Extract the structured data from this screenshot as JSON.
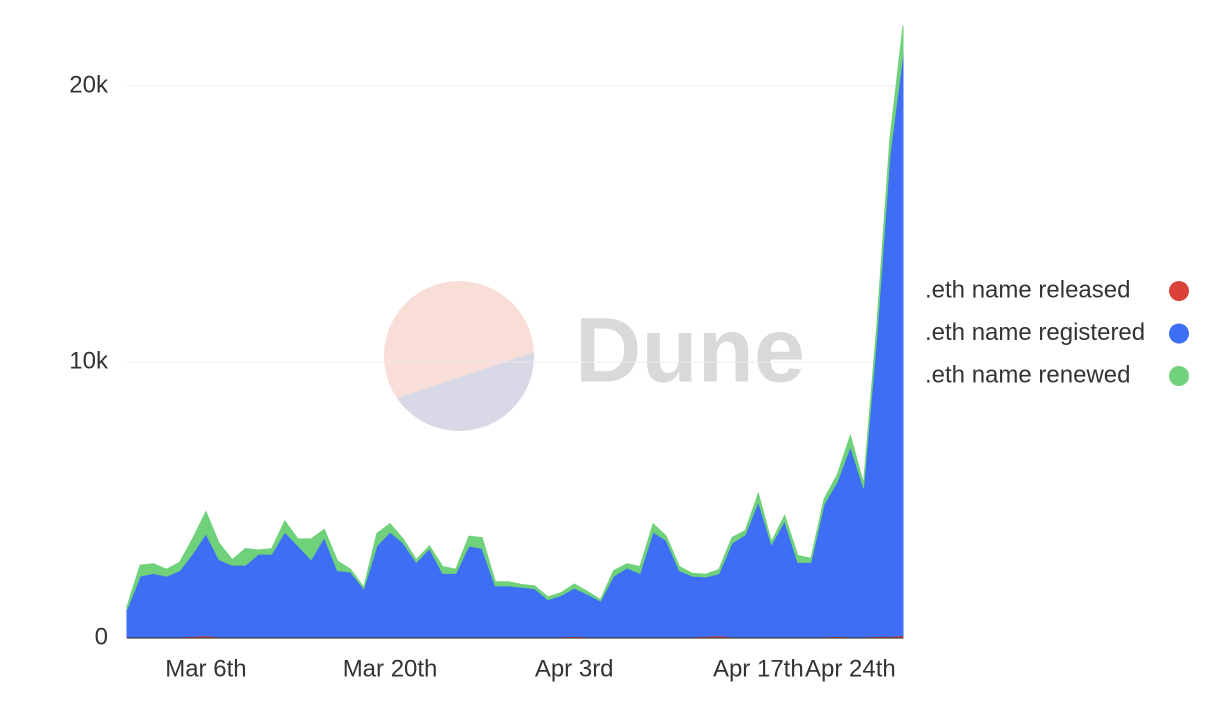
{
  "chart_data": {
    "type": "stacked_area",
    "watermark": "Dune",
    "categories": [
      null,
      null,
      null,
      null,
      null,
      null,
      "Mar 6th",
      null,
      null,
      null,
      null,
      null,
      null,
      null,
      null,
      null,
      null,
      null,
      null,
      null,
      "Mar 20th",
      null,
      null,
      null,
      null,
      null,
      null,
      null,
      null,
      null,
      null,
      null,
      null,
      null,
      "Apr 3rd",
      null,
      null,
      null,
      null,
      null,
      null,
      null,
      null,
      null,
      null,
      null,
      null,
      null,
      "Apr 17th",
      null,
      null,
      null,
      null,
      null,
      null,
      "Apr 24th",
      null,
      null,
      null,
      null
    ],
    "series": [
      {
        "name": ".eth name released",
        "color": "#d9413a",
        "values": [
          40,
          40,
          40,
          40,
          40,
          60,
          80,
          40,
          40,
          40,
          40,
          40,
          40,
          40,
          40,
          40,
          40,
          40,
          40,
          40,
          40,
          40,
          40,
          40,
          40,
          40,
          40,
          40,
          40,
          40,
          40,
          40,
          40,
          40,
          60,
          40,
          40,
          40,
          40,
          40,
          40,
          40,
          40,
          40,
          60,
          80,
          40,
          40,
          40,
          40,
          40,
          40,
          40,
          40,
          60,
          40,
          40,
          60,
          60,
          80
        ]
      },
      {
        "name": ".eth name registered",
        "color": "#3d6ef5",
        "values": [
          1000,
          2200,
          2300,
          2200,
          2400,
          3000,
          3700,
          2800,
          2600,
          2600,
          3000,
          3000,
          3800,
          3300,
          2800,
          3600,
          2400,
          2350,
          1750,
          3300,
          3800,
          3400,
          2700,
          3200,
          2300,
          2300,
          3300,
          3200,
          1850,
          1850,
          1800,
          1750,
          1350,
          1500,
          1750,
          1550,
          1300,
          2200,
          2500,
          2300,
          3800,
          3500,
          2400,
          2200,
          2150,
          2250,
          3400,
          3700,
          4900,
          3350,
          4200,
          2700,
          2700,
          4800,
          5600,
          6900,
          5400,
          10800,
          17400,
          21100
        ]
      },
      {
        "name": ".eth name renewed",
        "color": "#6fd17a",
        "values": [
          100,
          400,
          350,
          250,
          300,
          550,
          800,
          600,
          200,
          600,
          150,
          200,
          400,
          250,
          750,
          300,
          350,
          100,
          50,
          450,
          300,
          150,
          100,
          100,
          250,
          150,
          350,
          400,
          150,
          150,
          100,
          100,
          100,
          100,
          150,
          100,
          50,
          200,
          150,
          250,
          300,
          150,
          150,
          100,
          100,
          150,
          200,
          150,
          300,
          100,
          200,
          250,
          150,
          200,
          250,
          400,
          150,
          400,
          600,
          1000
        ]
      }
    ],
    "ylim": [
      0,
      22100
    ],
    "yticks": [
      0,
      {
        "value": 10000,
        "label": "10k"
      },
      {
        "value": 20000,
        "label": "20k"
      }
    ],
    "grid": true,
    "legend": "right"
  }
}
